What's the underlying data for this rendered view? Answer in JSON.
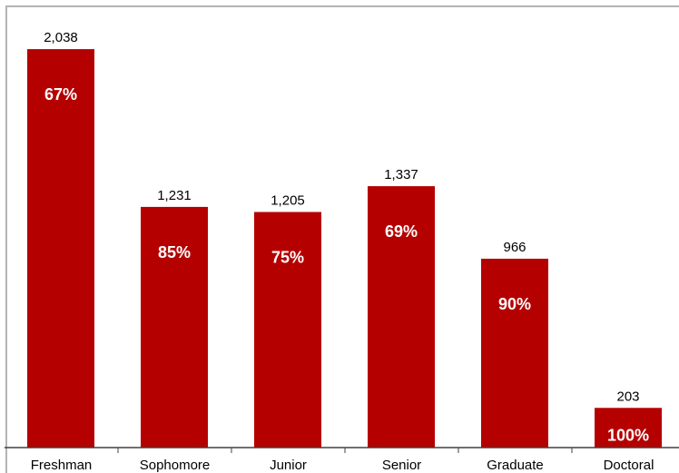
{
  "chart_data": {
    "type": "bar",
    "categories": [
      "Freshman",
      "Sophomore",
      "Junior",
      "Senior",
      "Graduate",
      "Doctoral"
    ],
    "values": [
      2038,
      1231,
      1205,
      1337,
      966,
      203
    ],
    "value_labels": [
      "2,038",
      "1,231",
      "1,205",
      "1,337",
      "966",
      "203"
    ],
    "bar_labels": [
      "67%",
      "85%",
      "75%",
      "69%",
      "90%",
      "100%"
    ],
    "ylim": [
      0,
      2150
    ],
    "grid": false,
    "legend": "none",
    "colors": {
      "bar": "#b50000",
      "bar_label": "#ffffff",
      "axis": "#404040",
      "frame": "#b3b3b3"
    }
  }
}
